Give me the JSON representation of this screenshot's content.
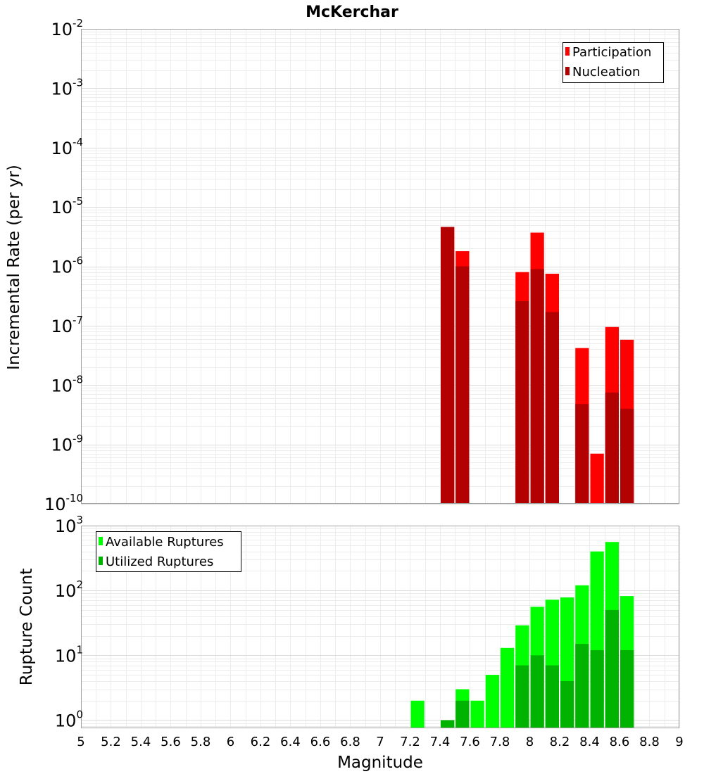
{
  "chart_data": [
    {
      "type": "bar",
      "title": "McKerchar",
      "xlabel": "",
      "ylabel": "Incremental Rate (per yr)",
      "yscale": "log",
      "xlim": [
        5,
        9
      ],
      "ylim": [
        1e-10,
        0.01
      ],
      "y_ticks": [
        {
          "base": "10",
          "exp": "-10",
          "value": 1e-10
        },
        {
          "base": "10",
          "exp": "-9",
          "value": 1e-09
        },
        {
          "base": "10",
          "exp": "-8",
          "value": 1e-08
        },
        {
          "base": "10",
          "exp": "-7",
          "value": 1e-07
        },
        {
          "base": "10",
          "exp": "-6",
          "value": 1e-06
        },
        {
          "base": "10",
          "exp": "-5",
          "value": 1e-05
        },
        {
          "base": "10",
          "exp": "-4",
          "value": 0.0001
        },
        {
          "base": "10",
          "exp": "-3",
          "value": 0.001
        },
        {
          "base": "10",
          "exp": "-2",
          "value": 0.01
        }
      ],
      "bin_width": 0.1,
      "legend_position": "top-right",
      "series": [
        {
          "name": "Participation",
          "color": "#ff0000",
          "x": [
            7.45,
            7.55,
            7.95,
            8.05,
            8.15,
            8.35,
            8.45,
            8.55,
            8.65
          ],
          "values": [
            4.6e-06,
            1.8e-06,
            8e-07,
            3.7e-06,
            7.5e-07,
            4.2e-08,
            7e-10,
            9.5e-08,
            5.8e-08
          ]
        },
        {
          "name": "Nucleation",
          "color": "#b30000",
          "x": [
            7.45,
            7.55,
            7.95,
            8.05,
            8.15,
            8.35,
            8.45,
            8.55,
            8.65
          ],
          "values": [
            4.6e-06,
            1e-06,
            2.6e-07,
            9e-07,
            1.7e-07,
            4.8e-09,
            0,
            7.5e-09,
            4e-09
          ]
        }
      ]
    },
    {
      "type": "bar",
      "title": "",
      "xlabel": "Magnitude",
      "ylabel": "Rupture Count",
      "yscale": "log",
      "xlim": [
        5,
        9
      ],
      "ylim": [
        0.75,
        1000
      ],
      "x_ticks": [
        "5",
        "5.2",
        "5.4",
        "5.6",
        "5.8",
        "6",
        "6.2",
        "6.4",
        "6.6",
        "6.8",
        "7",
        "7.2",
        "7.4",
        "7.6",
        "7.8",
        "8",
        "8.2",
        "8.4",
        "8.6",
        "8.8",
        "9"
      ],
      "y_ticks": [
        {
          "base": "10",
          "exp": "0",
          "value": 1
        },
        {
          "base": "10",
          "exp": "1",
          "value": 10
        },
        {
          "base": "10",
          "exp": "2",
          "value": 100
        },
        {
          "base": "10",
          "exp": "3",
          "value": 1000
        }
      ],
      "bin_width": 0.1,
      "legend_position": "top-left",
      "series": [
        {
          "name": "Available Ruptures",
          "color": "#00ff00",
          "x": [
            7.25,
            7.45,
            7.55,
            7.65,
            7.75,
            7.85,
            7.95,
            8.05,
            8.15,
            8.25,
            8.35,
            8.45,
            8.55,
            8.65
          ],
          "values": [
            2,
            1,
            3,
            2,
            5,
            13,
            29,
            56,
            72,
            78,
            120,
            400,
            560,
            82
          ]
        },
        {
          "name": "Utilized Ruptures",
          "color": "#00b300",
          "x": [
            7.45,
            7.55,
            7.95,
            8.05,
            8.15,
            8.25,
            8.35,
            8.45,
            8.55,
            8.65
          ],
          "values": [
            1,
            2,
            7,
            10,
            7,
            4,
            15,
            12,
            50,
            12
          ]
        }
      ]
    }
  ]
}
